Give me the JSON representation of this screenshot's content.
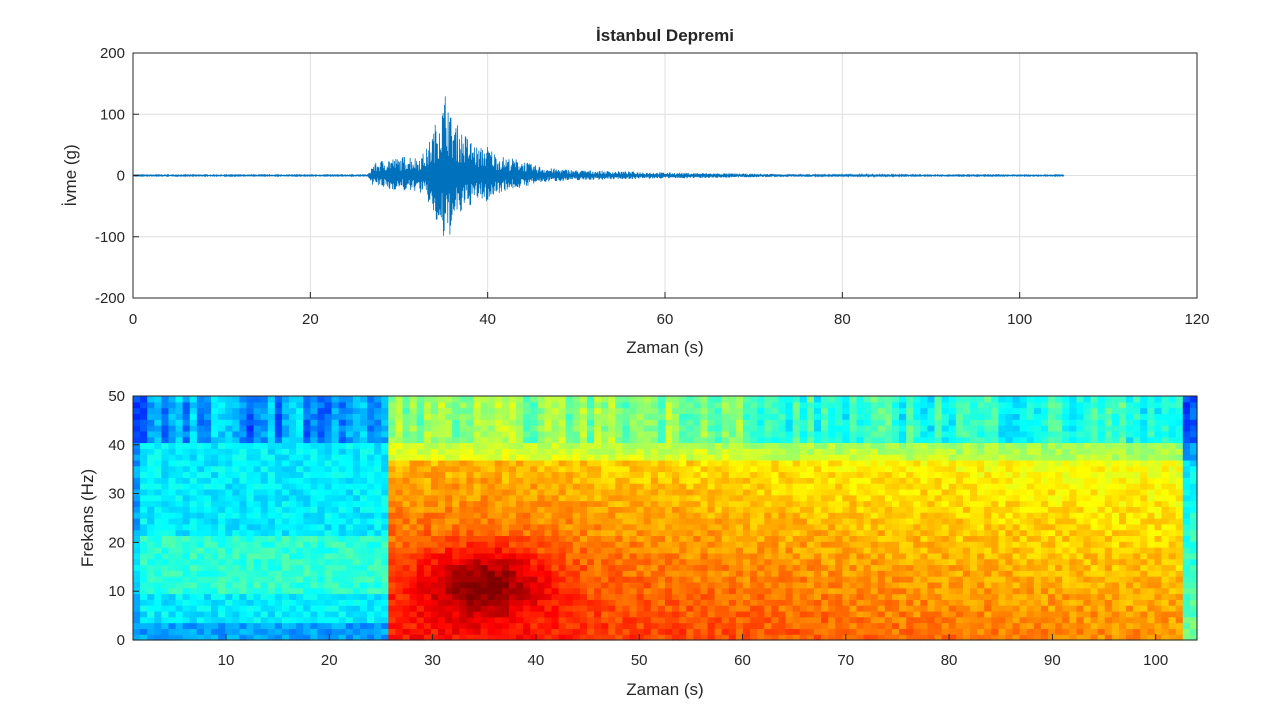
{
  "chart_data": [
    {
      "type": "line",
      "title": "İstanbul Depremi",
      "xlabel": "Zaman (s)",
      "ylabel": "İvme (g)",
      "xlim": [
        0,
        120
      ],
      "ylim": [
        -200,
        200
      ],
      "xticks": [
        0,
        20,
        40,
        60,
        80,
        100,
        120
      ],
      "yticks": [
        -200,
        -100,
        0,
        100,
        200
      ],
      "grid": true,
      "line_color": "#0072bd",
      "series": [
        {
          "x": [
            0,
            26.5,
            27,
            28,
            29,
            30,
            31,
            32,
            33,
            34,
            34.5,
            35,
            35.4,
            35.8,
            36.5,
            37,
            38,
            39,
            40,
            41,
            42,
            43,
            44,
            45,
            47,
            50,
            55,
            60,
            65,
            70,
            75,
            80,
            90,
            100,
            105
          ],
          "y_max": [
            1,
            1,
            18,
            25,
            30,
            28,
            35,
            30,
            40,
            80,
            110,
            120,
            155,
            100,
            85,
            75,
            60,
            45,
            50,
            35,
            30,
            28,
            25,
            18,
            12,
            9,
            7,
            5,
            4,
            3,
            2,
            2,
            1,
            1,
            1
          ],
          "y_min": [
            -1,
            -1,
            -15,
            -20,
            -25,
            -22,
            -28,
            -25,
            -35,
            -70,
            -100,
            -110,
            -120,
            -95,
            -75,
            -65,
            -50,
            -40,
            -45,
            -30,
            -25,
            -22,
            -20,
            -15,
            -10,
            -8,
            -6,
            -5,
            -4,
            -3,
            -2,
            -2,
            -1,
            -1,
            -1
          ]
        }
      ]
    },
    {
      "type": "heatmap",
      "title": "",
      "xlabel": "Zaman (s)",
      "ylabel": "Frekans (Hz)",
      "xlim": [
        1,
        104
      ],
      "ylim": [
        0,
        50
      ],
      "xticks": [
        10,
        20,
        30,
        40,
        50,
        60,
        70,
        80,
        90,
        100
      ],
      "yticks": [
        0,
        10,
        20,
        30,
        40,
        50
      ],
      "colormap": "jet",
      "onset_time": 25.5,
      "peak_time": 35,
      "peak_frequency": 12
    }
  ]
}
